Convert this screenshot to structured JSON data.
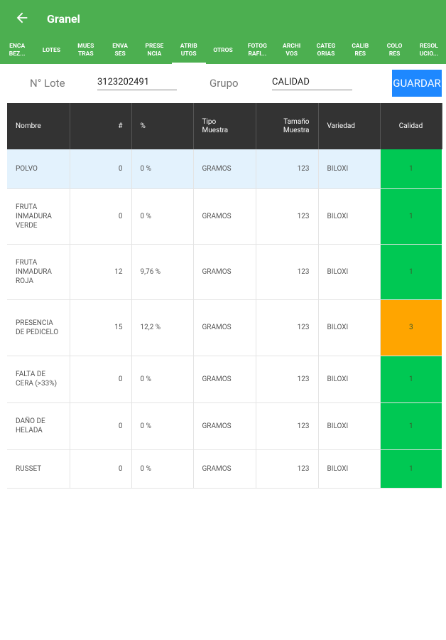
{
  "app_bar": {
    "title": "Granel"
  },
  "tabs": [
    {
      "label": "ENCA\nBEZ..."
    },
    {
      "label": "LOTES"
    },
    {
      "label": "MUES\nTRAS"
    },
    {
      "label": "ENVA\nSES"
    },
    {
      "label": "PRESE\nNCIA"
    },
    {
      "label": "ATRIB\nUTOS",
      "active": true
    },
    {
      "label": "OTROS"
    },
    {
      "label": "FOTOG\nRAFI..."
    },
    {
      "label": "ARCHI\nVOS"
    },
    {
      "label": "CATEG\nORIAS"
    },
    {
      "label": "CALIB\nRES"
    },
    {
      "label": "COLO\nRES"
    },
    {
      "label": "RESOL\nUCIO..."
    }
  ],
  "form": {
    "lote_label": "N° Lote",
    "lote_value": "3123202491",
    "grupo_label": "Grupo",
    "grupo_value": "CALIDAD",
    "button": "GUARDAR"
  },
  "table": {
    "columns": [
      "Nombre",
      "#",
      "%",
      "Tipo\nMuestra",
      "Tamaño\nMuestra",
      "Variedad",
      "Calidad"
    ],
    "rows": [
      [
        "POLVO",
        0,
        "0 %",
        "GRAMOS",
        123,
        "BILOXI",
        1
      ],
      [
        "FRUTA INMADURA VERDE",
        0,
        "0 %",
        "GRAMOS",
        123,
        "BILOXI",
        1
      ],
      [
        "FRUTA INMADURA ROJA",
        12,
        "9,76 %",
        "GRAMOS",
        123,
        "BILOXI",
        1
      ],
      [
        "PRESENCIA DE PEDICELO",
        15,
        "12,2 %",
        "GRAMOS",
        123,
        "BILOXI",
        3
      ],
      [
        "FALTA DE CERA (>33%)",
        0,
        "0 %",
        "GRAMOS",
        123,
        "BILOXI",
        1
      ],
      [
        "DAÑO DE HELADA",
        0,
        "0 %",
        "GRAMOS",
        123,
        "BILOXI",
        1
      ],
      [
        "RUSSET",
        0,
        "0 %",
        "GRAMOS",
        123,
        "BILOXI",
        1
      ]
    ],
    "quality_colors": {
      "1": "#00c853",
      "3": "#ffa500"
    }
  }
}
